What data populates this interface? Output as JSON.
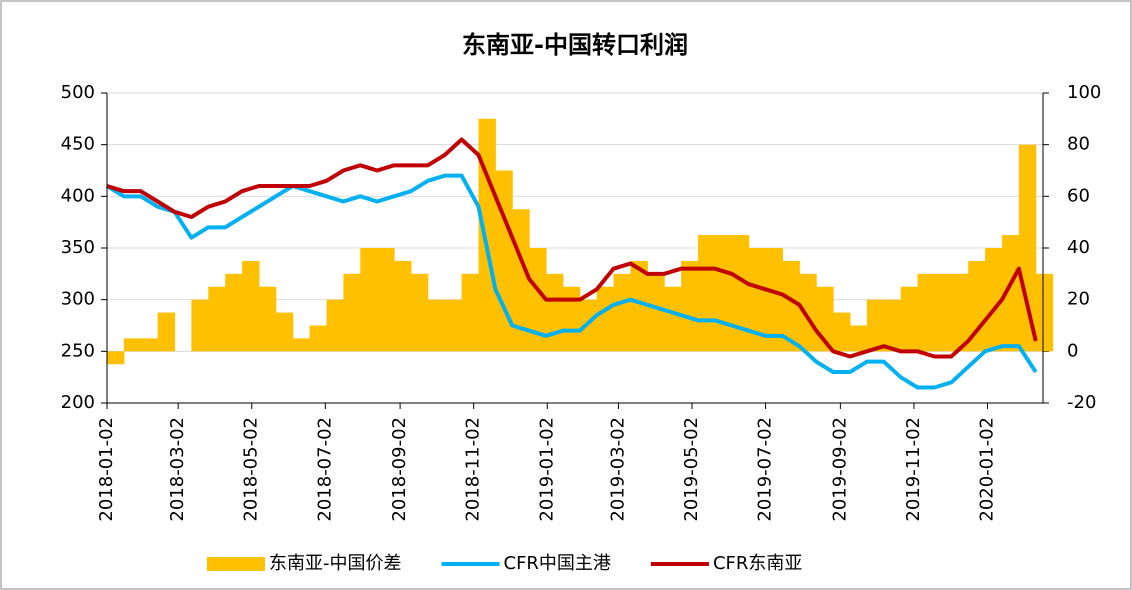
{
  "chart_data": {
    "type": "combo",
    "title": "东南亚-中国转口利润",
    "x": [
      "2018-01-02",
      "2018-01-16",
      "2018-01-30",
      "2018-02-13",
      "2018-02-27",
      "2018-03-13",
      "2018-03-27",
      "2018-04-10",
      "2018-04-24",
      "2018-05-08",
      "2018-05-22",
      "2018-06-05",
      "2018-06-19",
      "2018-07-03",
      "2018-07-17",
      "2018-07-31",
      "2018-08-14",
      "2018-08-28",
      "2018-09-11",
      "2018-09-25",
      "2018-10-09",
      "2018-10-23",
      "2018-11-06",
      "2018-11-20",
      "2018-12-04",
      "2018-12-18",
      "2019-01-01",
      "2019-01-15",
      "2019-01-29",
      "2019-02-12",
      "2019-02-26",
      "2019-03-12",
      "2019-03-26",
      "2019-04-09",
      "2019-04-23",
      "2019-05-07",
      "2019-05-21",
      "2019-06-04",
      "2019-06-18",
      "2019-07-02",
      "2019-07-16",
      "2019-07-30",
      "2019-08-13",
      "2019-08-27",
      "2019-09-10",
      "2019-09-24",
      "2019-10-08",
      "2019-10-22",
      "2019-11-05",
      "2019-11-19",
      "2019-12-03",
      "2019-12-17",
      "2019-12-31",
      "2020-01-14",
      "2020-01-28",
      "2020-02-11"
    ],
    "series": [
      {
        "name": "东南亚-中国价差",
        "type": "bar",
        "axis": "y2",
        "color": "#ffc000",
        "values": [
          -5,
          5,
          5,
          15,
          0,
          20,
          25,
          30,
          35,
          25,
          15,
          5,
          10,
          20,
          30,
          40,
          40,
          35,
          30,
          20,
          20,
          30,
          90,
          70,
          55,
          40,
          30,
          25,
          20,
          25,
          30,
          35,
          30,
          25,
          35,
          45,
          45,
          45,
          40,
          40,
          35,
          30,
          25,
          15,
          10,
          20,
          20,
          25,
          30,
          30,
          30,
          35,
          40,
          45,
          80,
          30
        ]
      },
      {
        "name": "CFR中国主港",
        "type": "line",
        "color": "#00b0f0",
        "values": [
          410,
          400,
          400,
          390,
          385,
          360,
          370,
          370,
          380,
          390,
          400,
          410,
          405,
          400,
          395,
          400,
          395,
          400,
          405,
          415,
          420,
          420,
          390,
          310,
          275,
          270,
          265,
          270,
          270,
          285,
          295,
          300,
          295,
          290,
          285,
          280,
          280,
          275,
          270,
          265,
          265,
          255,
          240,
          230,
          230,
          240,
          240,
          225,
          215,
          215,
          220,
          235,
          250,
          255,
          255,
          230
        ]
      },
      {
        "name": "CFR东南亚",
        "type": "line",
        "color": "#c00000",
        "values": [
          410,
          405,
          405,
          395,
          385,
          380,
          390,
          395,
          405,
          410,
          410,
          410,
          410,
          415,
          425,
          430,
          425,
          430,
          430,
          430,
          440,
          455,
          440,
          400,
          360,
          320,
          300,
          300,
          300,
          310,
          330,
          335,
          325,
          325,
          330,
          330,
          330,
          325,
          315,
          310,
          305,
          295,
          270,
          250,
          245,
          250,
          255,
          250,
          250,
          245,
          245,
          260,
          280,
          300,
          330,
          260
        ]
      }
    ],
    "xlim": [
      "2018-01-02",
      "2020-02-17"
    ],
    "xticks": [
      "2018-01-02",
      "2018-03-02",
      "2018-05-02",
      "2018-07-02",
      "2018-09-02",
      "2018-11-02",
      "2019-01-02",
      "2019-03-02",
      "2019-05-02",
      "2019-07-02",
      "2019-09-02",
      "2019-11-02",
      "2020-01-02"
    ],
    "ylim": [
      200,
      500
    ],
    "yticks": [
      200,
      250,
      300,
      350,
      400,
      450,
      500
    ],
    "y2lim": [
      -20,
      100
    ],
    "y2ticks": [
      -20,
      0,
      20,
      40,
      60,
      80,
      100
    ],
    "y2tick_colors": [
      "#ff0000",
      "#000000",
      "#000000",
      "#000000",
      "#000000",
      "#000000",
      "#000000"
    ],
    "grid": true,
    "legend": "bottom"
  }
}
